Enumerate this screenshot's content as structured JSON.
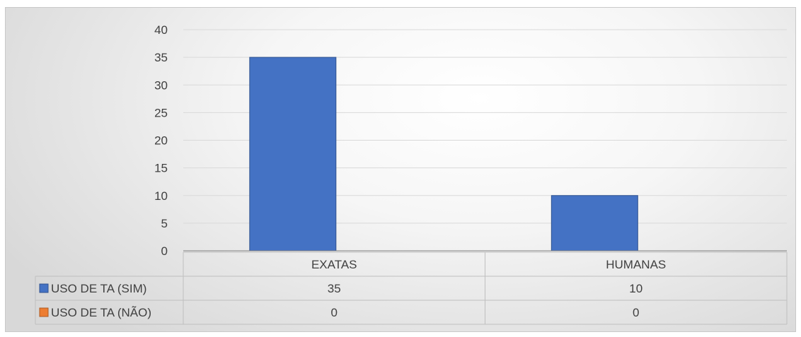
{
  "chart_data": {
    "type": "bar",
    "categories": [
      "EXATAS",
      "HUMANAS"
    ],
    "series": [
      {
        "name": "USO DE TA (SIM)",
        "values": [
          35,
          10
        ],
        "color": "#4472c4"
      },
      {
        "name": "USO DE TA (NÃO)",
        "values": [
          0,
          0
        ],
        "color": "#ed7d31"
      }
    ],
    "y_ticks": [
      "0",
      "5",
      "10",
      "15",
      "20",
      "25",
      "30",
      "35",
      "40"
    ],
    "ylim": [
      0,
      40
    ],
    "grid": true,
    "legend": "data-table",
    "table": {
      "rows": [
        {
          "label": "USO DE TA (SIM)",
          "values": [
            "35",
            "10"
          ]
        },
        {
          "label": "USO DE TA (NÃO)",
          "values": [
            "0",
            "0"
          ]
        }
      ]
    }
  }
}
